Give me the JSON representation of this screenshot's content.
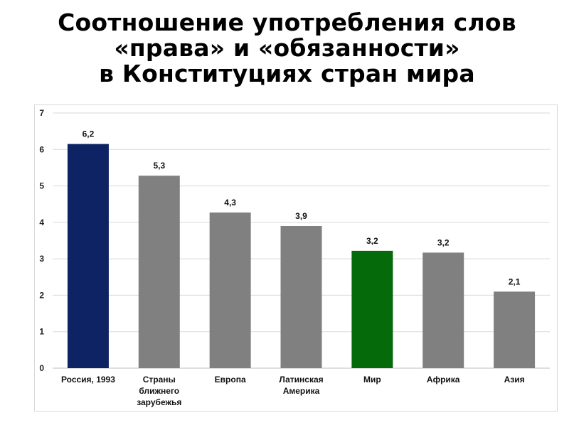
{
  "title_lines": [
    "Соотношение употребления слов",
    "«права» и «обязанности»",
    "в Конституциях стран мира"
  ],
  "chart_data": {
    "type": "bar",
    "title": "Соотношение употребления слов «права» и «обязанности» в Конституциях стран мира",
    "categories": [
      [
        "Россия, 1993"
      ],
      [
        "Страны",
        "ближнего",
        "зарубежья"
      ],
      [
        "Европа"
      ],
      [
        "Латинская",
        "Америка"
      ],
      [
        "Мир"
      ],
      [
        "Африка"
      ],
      [
        "Азия"
      ]
    ],
    "values": [
      6.15,
      5.28,
      4.27,
      3.9,
      3.22,
      3.17,
      2.1
    ],
    "value_labels": [
      "6,2",
      "5,3",
      "4,3",
      "3,9",
      "3,2",
      "3,2",
      "2,1"
    ],
    "colors": [
      "#0d2364",
      "#808080",
      "#808080",
      "#808080",
      "#046a0a",
      "#808080",
      "#808080"
    ],
    "ylim": [
      0,
      7
    ],
    "yticks": [
      0,
      1,
      2,
      3,
      4,
      5,
      6,
      7
    ],
    "grid": true,
    "xlabel": "",
    "ylabel": ""
  }
}
